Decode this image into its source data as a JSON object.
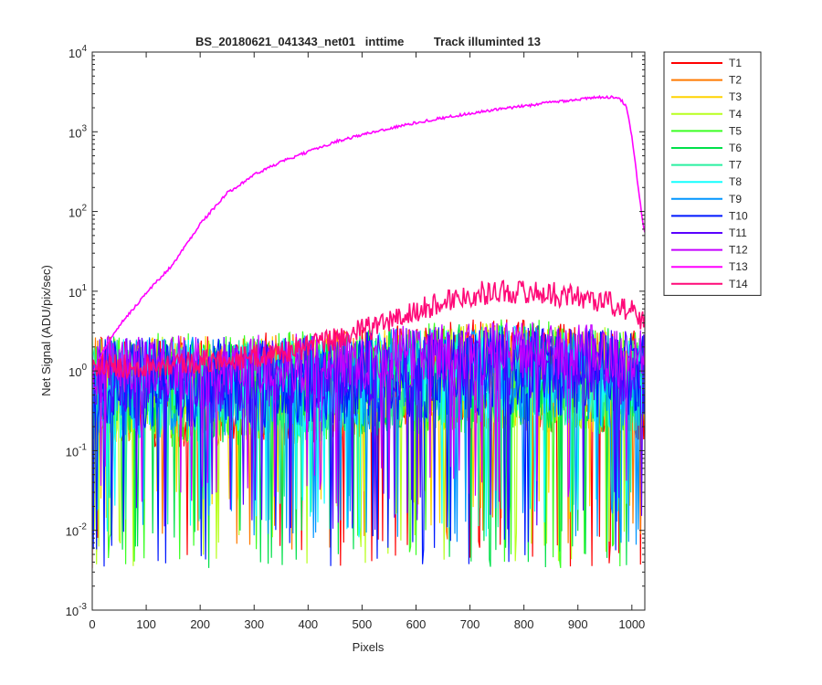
{
  "chart_data": {
    "type": "line",
    "title": "BS_20180621_041343_net01   inttime         Track illuminted 13",
    "xlabel": "Pixels",
    "ylabel": "Net Signal (ADU/pix/sec)",
    "xlim": [
      0,
      1024
    ],
    "ylim": [
      0.001,
      10000
    ],
    "yscale": "log",
    "grid": false,
    "legend_position": "outside-right",
    "x_ticks": [
      "0",
      "100",
      "200",
      "300",
      "400",
      "500",
      "600",
      "700",
      "800",
      "900",
      "1000"
    ],
    "y_ticks": [
      {
        "base": "10",
        "exp": "-3"
      },
      {
        "base": "10",
        "exp": "-2"
      },
      {
        "base": "10",
        "exp": "-1"
      },
      {
        "base": "10",
        "exp": "0"
      },
      {
        "base": "10",
        "exp": "1"
      },
      {
        "base": "10",
        "exp": "2"
      },
      {
        "base": "10",
        "exp": "3"
      },
      {
        "base": "10",
        "exp": "4"
      }
    ],
    "series": [
      {
        "name": "T1",
        "color": "#ff0000",
        "level": 0.8,
        "spread": 1.5,
        "min": 0.0033
      },
      {
        "name": "T2",
        "color": "#ff7a00",
        "level": 0.8,
        "spread": 1.4,
        "min": 0.005
      },
      {
        "name": "T3",
        "color": "#ffd300",
        "level": 0.8,
        "spread": 1.4,
        "min": 0.01
      },
      {
        "name": "T4",
        "color": "#b8ff1f",
        "level": 0.8,
        "spread": 1.4,
        "min": 0.0035
      },
      {
        "name": "T5",
        "color": "#3bff24",
        "level": 0.8,
        "spread": 1.5,
        "min": 0.0033
      },
      {
        "name": "T6",
        "color": "#00e04a",
        "level": 0.8,
        "spread": 1.4,
        "min": 0.0033
      },
      {
        "name": "T7",
        "color": "#29f0a0",
        "level": 0.8,
        "spread": 1.3,
        "min": 0.01
      },
      {
        "name": "T8",
        "color": "#14ffff",
        "level": 0.8,
        "spread": 1.3,
        "min": 0.008
      },
      {
        "name": "T9",
        "color": "#0095ff",
        "level": 0.85,
        "spread": 1.3,
        "min": 0.006
      },
      {
        "name": "T10",
        "color": "#0018ff",
        "level": 0.9,
        "spread": 1.2,
        "min": 0.0035
      },
      {
        "name": "T11",
        "color": "#5a00ff",
        "level": 1.1,
        "spread": 1.0,
        "min": 0.01
      },
      {
        "name": "T12",
        "color": "#c400ff",
        "level": 1.4,
        "spread": 0.8,
        "min": 0.02
      },
      {
        "name": "T13",
        "color": "#ff00ff",
        "x": [
          0,
          20,
          40,
          60,
          80,
          100,
          150,
          200,
          250,
          300,
          350,
          400,
          450,
          500,
          550,
          600,
          650,
          700,
          750,
          800,
          850,
          900,
          950,
          975,
          990,
          1000,
          1010,
          1020,
          1024
        ],
        "y": [
          0.9,
          1.8,
          3.0,
          4.5,
          6.5,
          9.5,
          22,
          70,
          170,
          290,
          420,
          560,
          750,
          920,
          1100,
          1300,
          1500,
          1700,
          1900,
          2100,
          2350,
          2550,
          2750,
          2700,
          2100,
          900,
          250,
          75,
          55
        ]
      },
      {
        "name": "T14",
        "color": "#ff0a78",
        "x": [
          0,
          100,
          200,
          300,
          400,
          500,
          600,
          650,
          700,
          750,
          800,
          850,
          900,
          950,
          1000,
          1024
        ],
        "y": [
          1.1,
          1.2,
          1.3,
          1.5,
          2.0,
          3.2,
          5.5,
          7.5,
          9.0,
          10,
          9.8,
          9.3,
          8.5,
          7.5,
          5.5,
          4.2
        ]
      }
    ]
  }
}
